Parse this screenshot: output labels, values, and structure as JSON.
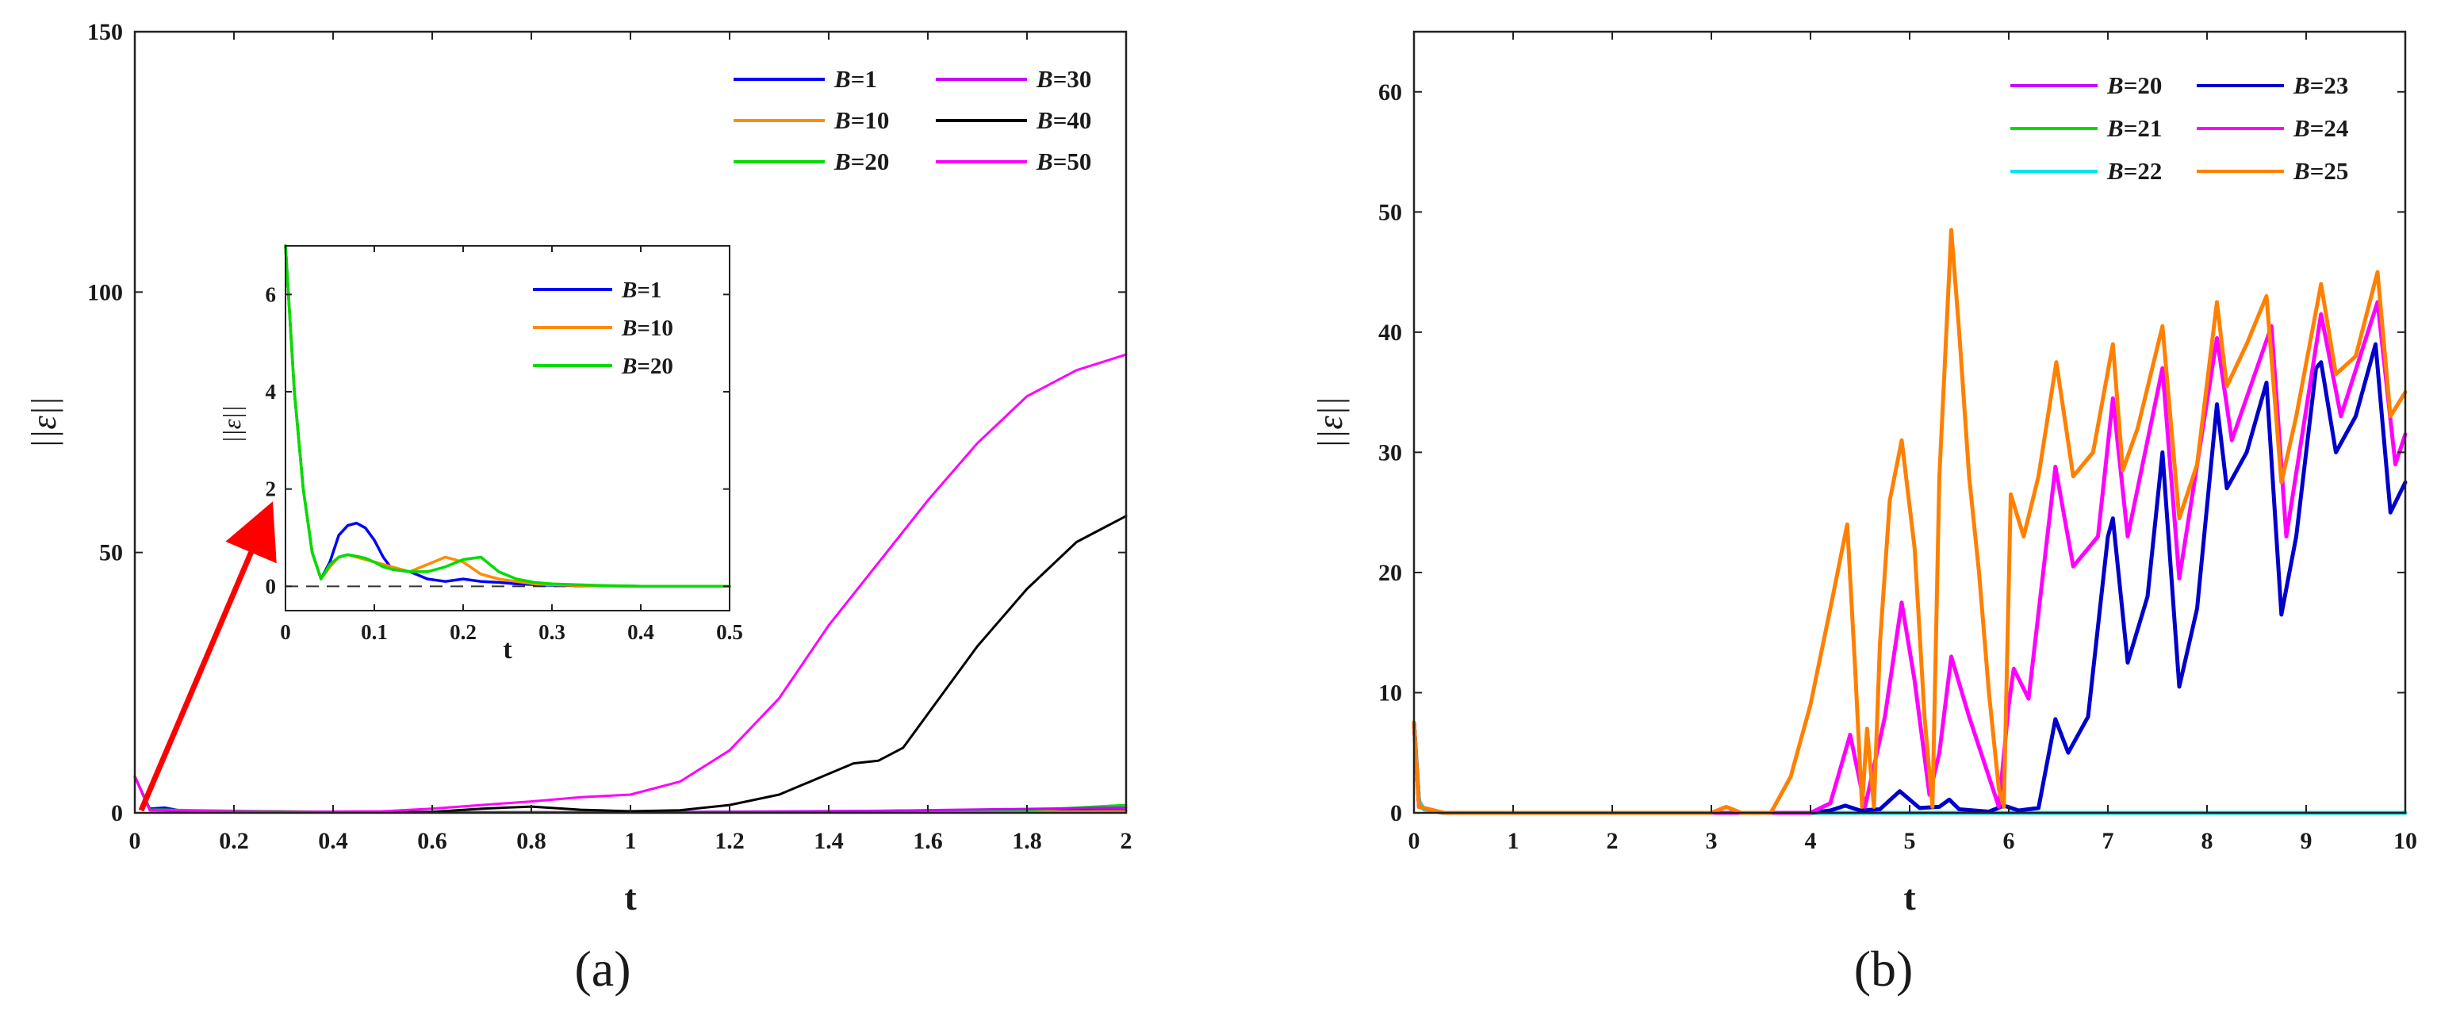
{
  "chart_data": [
    {
      "id": "a",
      "type": "line",
      "xlabel": "t",
      "ylabel": "||ε||",
      "xlim": [
        0,
        2
      ],
      "ylim": [
        0,
        150
      ],
      "xticks": [
        "0",
        "0.2",
        "0.4",
        "0.6",
        "0.8",
        "1",
        "1.2",
        "1.4",
        "1.6",
        "1.8",
        "2"
      ],
      "yticks": [
        "0",
        "50",
        "100",
        "150"
      ],
      "legend_position": "top-right",
      "series": [
        {
          "name": "B=1",
          "color": "#0000ff",
          "x": [
            0,
            0.03,
            0.06,
            0.1,
            0.2,
            0.5,
            1,
            1.5,
            2
          ],
          "y": [
            7,
            0.8,
            1,
            0.3,
            0.2,
            0.1,
            0.1,
            0.3,
            0.5
          ]
        },
        {
          "name": "B=10",
          "color": "#ff8c00",
          "x": [
            0,
            0.03,
            0.06,
            0.1,
            0.2,
            0.5,
            1,
            1.5,
            2
          ],
          "y": [
            7,
            0.6,
            0.6,
            0.4,
            0.3,
            0.1,
            0.1,
            0.2,
            0.3
          ]
        },
        {
          "name": "B=20",
          "color": "#00dd00",
          "x": [
            0,
            0.03,
            0.06,
            0.2,
            0.5,
            1,
            1.5,
            1.8,
            2
          ],
          "y": [
            7,
            0.6,
            0.6,
            0.4,
            0.1,
            0.1,
            0.3,
            0.5,
            1.5
          ]
        },
        {
          "name": "B=30",
          "color": "#cc00ff",
          "x": [
            0,
            0.03,
            0.06,
            0.2,
            0.5,
            1,
            1.5,
            2
          ],
          "y": [
            7,
            0.5,
            0.5,
            0.2,
            0.1,
            0.1,
            0.4,
            1
          ]
        },
        {
          "name": "B=40",
          "color": "#000000",
          "x": [
            0,
            0.03,
            0.1,
            0.4,
            0.6,
            0.7,
            0.8,
            0.9,
            1,
            1.1,
            1.2,
            1.3,
            1.4,
            1.45,
            1.5,
            1.55,
            1.6,
            1.7,
            1.8,
            1.9,
            2
          ],
          "y": [
            7,
            0.5,
            0.3,
            0.1,
            0.2,
            0.8,
            1.2,
            0.6,
            0.3,
            0.5,
            1.5,
            3.5,
            7.5,
            9.5,
            10,
            12.5,
            19,
            32,
            43,
            52,
            57
          ]
        },
        {
          "name": "B=50",
          "color": "#ff00ff",
          "x": [
            0,
            0.03,
            0.1,
            0.3,
            0.5,
            0.6,
            0.7,
            0.8,
            0.9,
            1,
            1.1,
            1.2,
            1.3,
            1.4,
            1.5,
            1.6,
            1.7,
            1.8,
            1.9,
            2
          ],
          "y": [
            7,
            0.5,
            0.4,
            0.2,
            0.3,
            0.8,
            1.5,
            2.2,
            3,
            3.5,
            6,
            12,
            22,
            36,
            48,
            60,
            71,
            80,
            85,
            88
          ]
        }
      ]
    },
    {
      "id": "a-inset",
      "type": "line",
      "xlabel": "t",
      "ylabel": "||ε||",
      "xlim": [
        0,
        0.5
      ],
      "ylim": [
        -0.5,
        7
      ],
      "xticks": [
        "0",
        "0.1",
        "0.2",
        "0.3",
        "0.4",
        "0.5"
      ],
      "yticks": [
        "0",
        "2",
        "4",
        "6"
      ],
      "reference_line": {
        "y": 0,
        "style": "dashed"
      },
      "legend_position": "top-right",
      "series": [
        {
          "name": "B=1",
          "color": "#0000ff",
          "x": [
            0,
            0.01,
            0.02,
            0.03,
            0.04,
            0.05,
            0.06,
            0.07,
            0.08,
            0.09,
            0.1,
            0.11,
            0.12,
            0.14,
            0.16,
            0.18,
            0.2,
            0.22,
            0.24,
            0.26,
            0.3,
            0.35,
            0.4,
            0.5
          ],
          "y": [
            7,
            4,
            2,
            0.7,
            0.15,
            0.5,
            1.05,
            1.25,
            1.3,
            1.2,
            0.95,
            0.6,
            0.35,
            0.3,
            0.15,
            0.1,
            0.15,
            0.1,
            0.08,
            0.05,
            0.02,
            0.01,
            0,
            0
          ]
        },
        {
          "name": "B=10",
          "color": "#ff8c00",
          "x": [
            0,
            0.01,
            0.02,
            0.03,
            0.04,
            0.05,
            0.06,
            0.07,
            0.08,
            0.09,
            0.1,
            0.11,
            0.12,
            0.14,
            0.16,
            0.18,
            0.2,
            0.22,
            0.24,
            0.26,
            0.28,
            0.3,
            0.35,
            0.4,
            0.5
          ],
          "y": [
            7,
            4,
            2,
            0.7,
            0.15,
            0.4,
            0.6,
            0.65,
            0.6,
            0.55,
            0.5,
            0.45,
            0.4,
            0.3,
            0.45,
            0.6,
            0.5,
            0.25,
            0.15,
            0.1,
            0.05,
            0.03,
            0.01,
            0,
            0
          ]
        },
        {
          "name": "B=20",
          "color": "#00dd00",
          "x": [
            0,
            0.01,
            0.02,
            0.03,
            0.04,
            0.05,
            0.06,
            0.07,
            0.08,
            0.09,
            0.1,
            0.11,
            0.12,
            0.14,
            0.16,
            0.18,
            0.2,
            0.22,
            0.24,
            0.26,
            0.28,
            0.3,
            0.35,
            0.4,
            0.5
          ],
          "y": [
            7,
            4,
            2,
            0.7,
            0.15,
            0.45,
            0.6,
            0.65,
            0.62,
            0.58,
            0.5,
            0.4,
            0.35,
            0.3,
            0.3,
            0.4,
            0.55,
            0.6,
            0.3,
            0.15,
            0.08,
            0.05,
            0.02,
            0,
            0
          ]
        }
      ]
    },
    {
      "id": "b",
      "type": "line",
      "xlabel": "t",
      "ylabel": "||ε||",
      "xlim": [
        0,
        10
      ],
      "ylim": [
        0,
        65
      ],
      "xticks": [
        "0",
        "1",
        "2",
        "3",
        "4",
        "5",
        "6",
        "7",
        "8",
        "9",
        "10"
      ],
      "yticks": [
        "0",
        "10",
        "20",
        "30",
        "40",
        "50",
        "60"
      ],
      "legend_position": "top-right",
      "series": [
        {
          "name": "B=20",
          "color": "#cc00ff",
          "x": [
            0,
            0.05,
            0.1,
            0.3,
            10
          ],
          "y": [
            7.5,
            1,
            0.3,
            0,
            0
          ]
        },
        {
          "name": "B=21",
          "color": "#00dd00",
          "x": [
            0,
            0.05,
            0.1,
            0.3,
            10
          ],
          "y": [
            7.5,
            1,
            0.3,
            0,
            0
          ]
        },
        {
          "name": "B=22",
          "color": "#00e5ee",
          "x": [
            0,
            0.05,
            0.1,
            0.3,
            10
          ],
          "y": [
            7.5,
            1,
            0.3,
            0,
            0
          ]
        },
        {
          "name": "B=23",
          "color": "#0000cc",
          "x": [
            0,
            0.05,
            0.3,
            4,
            4.2,
            4.35,
            4.5,
            4.7,
            4.9,
            5.1,
            5.3,
            5.4,
            5.5,
            5.8,
            5.95,
            6.1,
            6.3,
            6.47,
            6.6,
            6.8,
            7,
            7.05,
            7.2,
            7.4,
            7.55,
            7.72,
            7.9,
            8.1,
            8.2,
            8.4,
            8.6,
            8.75,
            8.9,
            9.1,
            9.15,
            9.3,
            9.5,
            9.7,
            9.85,
            10
          ],
          "y": [
            7.5,
            0.5,
            0,
            0,
            0.2,
            0.6,
            0.2,
            0.3,
            1.8,
            0.4,
            0.5,
            1.1,
            0.3,
            0.1,
            0.6,
            0.2,
            0.4,
            7.8,
            5,
            8,
            23,
            24.5,
            12.5,
            18,
            30,
            10.5,
            17,
            34,
            27,
            30,
            35.8,
            16.5,
            23,
            37,
            37.5,
            30,
            33,
            39,
            25,
            27.5
          ]
        },
        {
          "name": "B=24",
          "color": "#ff00ff",
          "x": [
            0,
            0.05,
            0.3,
            4,
            4.2,
            4.4,
            4.55,
            4.75,
            4.92,
            5.05,
            5.2,
            5.3,
            5.42,
            5.6,
            5.9,
            6,
            6.05,
            6.2,
            6.47,
            6.65,
            6.9,
            7.05,
            7.2,
            7.55,
            7.72,
            8.1,
            8.25,
            8.65,
            8.8,
            9.15,
            9.35,
            9.72,
            9.9,
            10
          ],
          "y": [
            7.5,
            0.5,
            0,
            0,
            0.8,
            6.5,
            0.5,
            8,
            17.5,
            11,
            1.5,
            5,
            13,
            8,
            0.5,
            9,
            12,
            9.5,
            28.8,
            20.5,
            23,
            34.5,
            23,
            37,
            19.5,
            39.5,
            31,
            40.5,
            23,
            41.5,
            33,
            42.5,
            29,
            31.5
          ]
        },
        {
          "name": "B=25",
          "color": "#ff8000",
          "x": [
            0,
            0.05,
            0.3,
            3,
            3.15,
            3.3,
            3.6,
            3.8,
            4,
            4.2,
            4.37,
            4.45,
            4.52,
            4.57,
            4.64,
            4.7,
            4.8,
            4.92,
            5.05,
            5.15,
            5.23,
            5.3,
            5.42,
            5.5,
            5.6,
            5.7,
            5.8,
            5.9,
            5.95,
            6.02,
            6.15,
            6.3,
            6.48,
            6.65,
            6.85,
            7.05,
            7.15,
            7.3,
            7.55,
            7.72,
            7.9,
            8.1,
            8.2,
            8.4,
            8.6,
            8.75,
            8.9,
            9.15,
            9.3,
            9.5,
            9.72,
            9.85,
            10
          ],
          "y": [
            7.5,
            0.5,
            0,
            0,
            0.5,
            0,
            0,
            3,
            9,
            17,
            24,
            12,
            0.5,
            7,
            0.5,
            14,
            26,
            31,
            22,
            8,
            0.5,
            28,
            48.5,
            40,
            28,
            20,
            10,
            2,
            0.5,
            26.5,
            23,
            28,
            37.5,
            28,
            30,
            39,
            28.5,
            32,
            40.5,
            24.5,
            29,
            42.5,
            35.5,
            39,
            43,
            27.5,
            33,
            44,
            36.5,
            38,
            45,
            33,
            35
          ]
        }
      ]
    }
  ],
  "captions": {
    "a": "(a)",
    "b": "(b)"
  },
  "annotation": {
    "arrow": "red arrow from t=0 to the zoomed inset",
    "arrow_color": "#ff0000"
  }
}
